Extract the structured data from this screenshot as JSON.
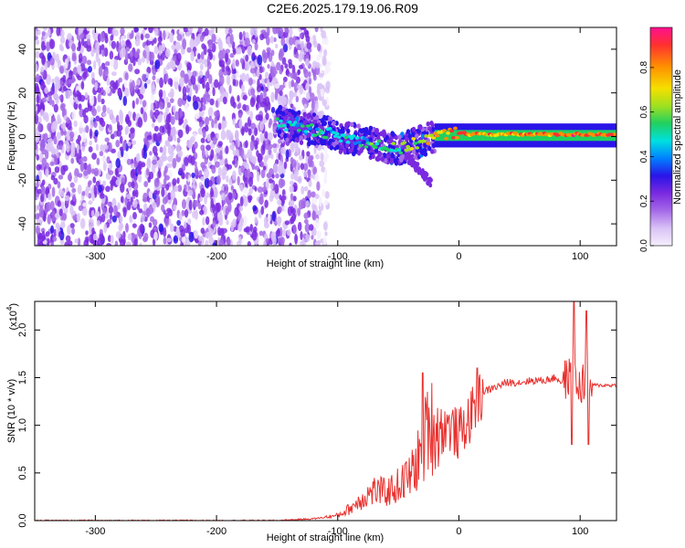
{
  "title": "C2E6.2025.179.19.06.R09",
  "top_panel": {
    "ylabel": "Frequency (Hz)",
    "xlabel": "Height of straight line (km)",
    "colorbar_label": "Normalized spectral amplitude"
  },
  "bottom_panel": {
    "ylabel": "SNR (10 * v/v)",
    "xlabel": "Height of straight line (km)",
    "multiplier": "(x10",
    "multiplier_exp": "4",
    "multiplier_close": ")"
  },
  "colors": {
    "snr_line": "#e8312e",
    "colormap": [
      "#f5effc",
      "#d9c2f6",
      "#a56ae8",
      "#7a2ae0",
      "#2a14e8",
      "#0080ff",
      "#00e0e0",
      "#20d060",
      "#9fe020",
      "#f5e000",
      "#ff9000",
      "#ff3030",
      "#ff1090"
    ]
  },
  "chart_data": [
    {
      "type": "heatmap",
      "title": "C2E6.2025.179.19.06.R09",
      "xlabel": "Height of straight line (km)",
      "ylabel": "Frequency (Hz)",
      "xlim": [
        -350,
        130
      ],
      "ylim": [
        -50,
        50
      ],
      "xticks": [
        -300,
        -200,
        -100,
        0,
        100
      ],
      "yticks": [
        -40,
        -20,
        0,
        20,
        40
      ],
      "colorbar": {
        "label": "Normalized spectral amplitude",
        "range": [
          0,
          0.98
        ],
        "ticks": [
          0.0,
          0.2,
          0.4,
          0.6,
          0.8
        ]
      },
      "features": [
        {
          "x_range": [
            -350,
            -115
          ],
          "freq_range": [
            -50,
            50
          ],
          "amplitude": 0.15
        },
        {
          "x_range": [
            -150,
            -20
          ],
          "freq_range": [
            -20,
            10
          ],
          "amplitude": 0.35
        },
        {
          "x_range": [
            -20,
            130
          ],
          "freq_range": [
            -2,
            3
          ],
          "amplitude": 0.55
        }
      ],
      "ridge": {
        "x": [
          -150,
          -140,
          -130,
          -120,
          -110,
          -100,
          -90,
          -80,
          -70,
          -60,
          -50,
          -40,
          -30,
          -20,
          -10,
          0,
          10,
          20,
          40,
          60,
          80,
          100,
          120,
          130
        ],
        "freq": [
          7,
          5,
          4,
          3,
          2,
          0,
          -1,
          -2,
          -3,
          -5,
          -6,
          -4,
          -2,
          0,
          1,
          2,
          1,
          1,
          1,
          1,
          1,
          1,
          1,
          1
        ],
        "amplitude": [
          0.5,
          0.45,
          0.5,
          0.55,
          0.5,
          0.5,
          0.55,
          0.5,
          0.6,
          0.55,
          0.6,
          0.65,
          0.7,
          0.75,
          0.8,
          0.9,
          0.85,
          0.8,
          0.8,
          0.85,
          0.85,
          0.9,
          0.9,
          0.85
        ]
      }
    },
    {
      "type": "line",
      "xlabel": "Height of straight line (km)",
      "ylabel": "SNR (10 * v/v)",
      "xlim": [
        -350,
        130
      ],
      "ylim": [
        0,
        2.3
      ],
      "y_multiplier": "x10^4",
      "xticks": [
        -300,
        -200,
        -100,
        0,
        100
      ],
      "yticks": [
        0.0,
        0.5,
        1.0,
        1.5,
        2.0
      ],
      "series": [
        {
          "x": [
            -350,
            -300,
            -250,
            -200,
            -150,
            -120,
            -100,
            -90,
            -80,
            -70,
            -60,
            -50,
            -40,
            -30,
            -25,
            -20,
            -10,
            0,
            10,
            20,
            30,
            40,
            50,
            60,
            70,
            80,
            85,
            90,
            95,
            100,
            105,
            110,
            120,
            130
          ],
          "y": [
            0.0,
            0.0,
            0.0,
            0.0,
            0.0,
            0.02,
            0.05,
            0.12,
            0.22,
            0.3,
            0.28,
            0.35,
            0.45,
            0.7,
            1.0,
            0.9,
            1.0,
            0.9,
            1.1,
            1.35,
            1.4,
            1.45,
            1.45,
            1.47,
            1.47,
            1.5,
            1.45,
            1.5,
            1.45,
            1.4,
            1.5,
            1.42,
            1.42,
            1.42
          ]
        }
      ],
      "spikes": [
        {
          "x": -30,
          "y": 1.55
        },
        {
          "x": 15,
          "y": 1.6
        },
        {
          "x": 95,
          "y": 2.3
        },
        {
          "x": 105,
          "y": 2.2
        },
        {
          "x": 93,
          "y": 0.8
        },
        {
          "x": 107,
          "y": 0.8
        }
      ]
    }
  ]
}
